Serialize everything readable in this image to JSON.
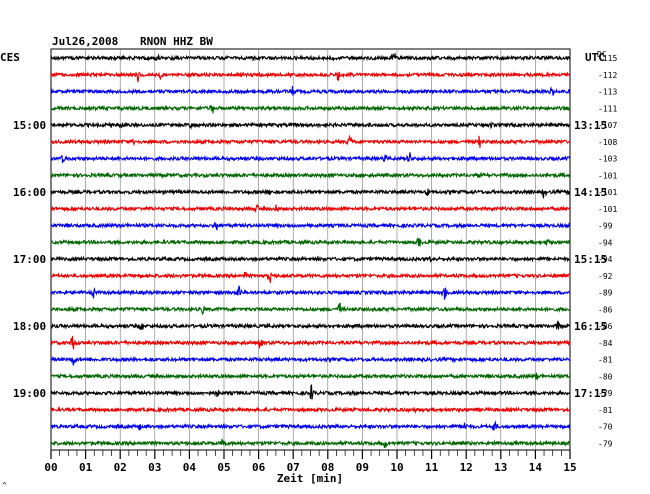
{
  "chart_data": {
    "type": "line",
    "title_date": "Jul26,2008",
    "title_station": "RNON HHZ BW",
    "left_label": "CES",
    "right_label": "UTC",
    "right_col_header": "DC",
    "xlabel": "Zeit [min]",
    "x_ticks": [
      "00",
      "01",
      "02",
      "03",
      "04",
      "05",
      "06",
      "07",
      "08",
      "09",
      "10",
      "11",
      "12",
      "13",
      "14",
      "15"
    ],
    "xlim": [
      0,
      15
    ],
    "traces": 24,
    "trace_colors": [
      "#000000",
      "#ee0000",
      "#0000ee",
      "#006600"
    ],
    "left_hour_labels": [
      {
        "row": 4,
        "text": "15:00"
      },
      {
        "row": 8,
        "text": "16:00"
      },
      {
        "row": 12,
        "text": "17:00"
      },
      {
        "row": 16,
        "text": "18:00"
      },
      {
        "row": 20,
        "text": "19:00"
      }
    ],
    "right_hour_labels": [
      {
        "row": 4,
        "text": "13:15"
      },
      {
        "row": 8,
        "text": "14:15"
      },
      {
        "row": 12,
        "text": "15:15"
      },
      {
        "row": 16,
        "text": "16:15"
      },
      {
        "row": 20,
        "text": "17:15"
      }
    ],
    "dc_offsets": [
      "-115",
      "-112",
      "-113",
      "-111",
      "-107",
      "-108",
      "-103",
      "-101",
      "-101",
      "-101",
      "-99",
      "-94",
      "-94",
      "-92",
      "-89",
      "-86",
      "-86",
      "-84",
      "-81",
      "-80",
      "-79",
      "-81",
      "-70",
      "-79"
    ],
    "corner_mark": "^"
  }
}
